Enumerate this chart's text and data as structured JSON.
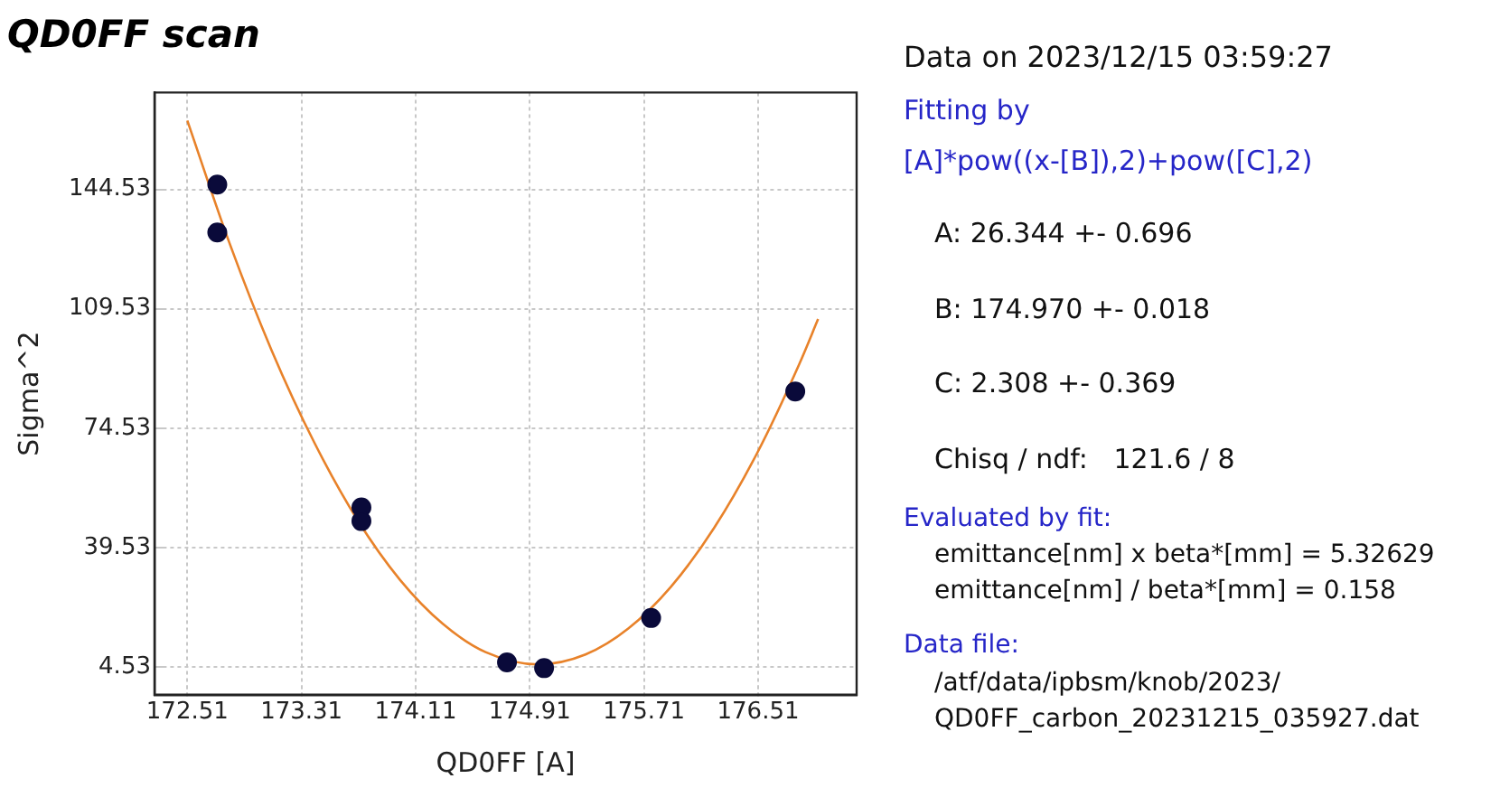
{
  "chart_data": {
    "type": "scatter",
    "title": "QD0FF scan",
    "xlabel": "QD0FF [A]",
    "ylabel": "Sigma^2",
    "xlim": [
      172.28,
      177.2
    ],
    "ylim": [
      -3.6,
      172.9
    ],
    "xticks": [
      172.51,
      173.31,
      174.11,
      174.91,
      175.71,
      176.51
    ],
    "yticks": [
      4.53,
      39.53,
      74.53,
      109.53,
      144.53
    ],
    "grid": true,
    "legend": false,
    "marker": "circle",
    "series": [
      {
        "color": "#0a0a3a",
        "x": [
          172.72,
          172.72,
          173.73,
          173.73,
          174.75,
          175.01,
          175.76,
          176.77
        ],
        "values": [
          145.9,
          131.9,
          51.3,
          47.3,
          5.9,
          4.2,
          18.9,
          85.3
        ]
      },
      {
        "type": "line",
        "marker": "none",
        "color": "#e8822a",
        "x": [
          172.51,
          172.8,
          173.1,
          173.4,
          173.7,
          174.0,
          174.3,
          174.6,
          174.97,
          175.3,
          175.6,
          175.9,
          176.2,
          176.5,
          176.8,
          176.93
        ],
        "values": [
          164.7,
          129.4,
          97.4,
          70.3,
          47.8,
          30.1,
          17.2,
          8.9,
          5.3,
          8.2,
          15.8,
          28.1,
          45.2,
          67.0,
          93.5,
          106.5
        ]
      }
    ],
    "annotations": [
      "Data on 2023/12/15 03:59:27",
      "Fitting by",
      "[A]*pow((x-[B]),2)+pow([C],2)",
      "A: 26.344 +- 0.696",
      "B: 174.970 +- 0.018",
      "C: 2.308 +- 0.369",
      "Chisq / ndf:   121.6 / 8",
      "Evaluated by fit:",
      "emittance[nm] x beta*[mm] = 5.32629",
      "emittance[nm] / beta*[mm] = 0.158",
      "Data file:",
      "/atf/data/ipbsm/knob/2023/",
      "QD0FF_carbon_20231215_035927.dat"
    ]
  }
}
